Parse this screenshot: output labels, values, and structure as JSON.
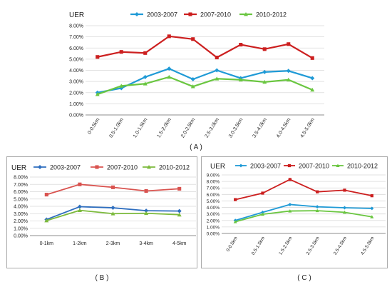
{
  "colors": {
    "blue": "#1f9ad6",
    "red": "#cc1f1f",
    "green": "#6ac640",
    "blueB": "#2e6ebf",
    "redB": "#d9534f",
    "greenB": "#7cba3c"
  },
  "chart_data": [
    {
      "id": "A",
      "panel_label": "( A )",
      "type": "line",
      "ylabel": "UER",
      "categories": [
        "0-0.5km",
        "0.5-1.0km",
        "1.0-1.5km",
        "1.5-2.0km",
        "2.0-2.5km",
        "2.5-3.0km",
        "3.0-3.5km",
        "3.5-4.0km",
        "4.0-4.5km",
        "4.5-5.0km"
      ],
      "y_ticks": [
        "0.00%",
        "1.00%",
        "2.00%",
        "3.00%",
        "4.00%",
        "5.00%",
        "6.00%",
        "7.00%",
        "8.00%"
      ],
      "ylim": [
        0,
        8
      ],
      "grid": true,
      "legend_position": "top",
      "series": [
        {
          "name": "2003-2007",
          "color": "#1f9ad6",
          "marker": "diamond",
          "values": [
            2.0,
            2.4,
            3.4,
            4.15,
            3.2,
            4.0,
            3.3,
            3.85,
            3.95,
            3.3
          ]
        },
        {
          "name": "2007-2010",
          "color": "#cc1f1f",
          "marker": "square",
          "values": [
            5.2,
            5.65,
            5.55,
            7.05,
            6.8,
            5.15,
            6.3,
            5.9,
            6.35,
            5.1
          ]
        },
        {
          "name": "2010-2012",
          "color": "#6ac640",
          "marker": "triangle",
          "values": [
            1.85,
            2.6,
            2.8,
            3.4,
            2.55,
            3.25,
            3.15,
            2.95,
            3.15,
            2.25
          ]
        }
      ]
    },
    {
      "id": "B",
      "panel_label": "( B )",
      "type": "line",
      "ylabel": "UER",
      "categories": [
        "0-1km",
        "1-2km",
        "2-3km",
        "3-4km",
        "4-5km"
      ],
      "y_ticks": [
        "0.00%",
        "1.00%",
        "2.00%",
        "3.00%",
        "4.00%",
        "5.00%",
        "6.00%",
        "7.00%",
        "8.00%"
      ],
      "ylim": [
        0,
        8
      ],
      "grid": true,
      "legend_position": "top",
      "series": [
        {
          "name": "2003-2007",
          "color": "#2e6ebf",
          "marker": "diamond",
          "values": [
            2.2,
            3.95,
            3.8,
            3.4,
            3.35
          ]
        },
        {
          "name": "2007-2010",
          "color": "#d9534f",
          "marker": "square",
          "values": [
            5.6,
            7.0,
            6.6,
            6.1,
            6.4
          ]
        },
        {
          "name": "2010-2012",
          "color": "#7cba3c",
          "marker": "triangle",
          "values": [
            2.05,
            3.45,
            3.0,
            3.05,
            2.85
          ]
        }
      ]
    },
    {
      "id": "C",
      "panel_label": "( C )",
      "type": "line",
      "ylabel": "UER",
      "categories": [
        "0-0.5km",
        "0.5-1.5km",
        "1.5-2.5km",
        "2.5-3.5km",
        "3.5-4.5km",
        "4.5-5.0km"
      ],
      "y_ticks": [
        "0.00%",
        "1.00%",
        "2.00%",
        "3.00%",
        "4.00%",
        "5.00%",
        "6.00%",
        "7.00%",
        "8.00%",
        "9.00%"
      ],
      "ylim": [
        0,
        9
      ],
      "grid": true,
      "legend_position": "top",
      "series": [
        {
          "name": "2003-2007",
          "color": "#1f9ad6",
          "marker": "diamond",
          "values": [
            2.0,
            3.25,
            4.45,
            4.1,
            3.95,
            3.85
          ]
        },
        {
          "name": "2007-2010",
          "color": "#cc1f1f",
          "marker": "square",
          "values": [
            5.2,
            6.2,
            8.3,
            6.4,
            6.65,
            5.8
          ]
        },
        {
          "name": "2010-2012",
          "color": "#6ac640",
          "marker": "triangle",
          "values": [
            1.8,
            2.95,
            3.45,
            3.5,
            3.25,
            2.55
          ]
        }
      ]
    }
  ]
}
